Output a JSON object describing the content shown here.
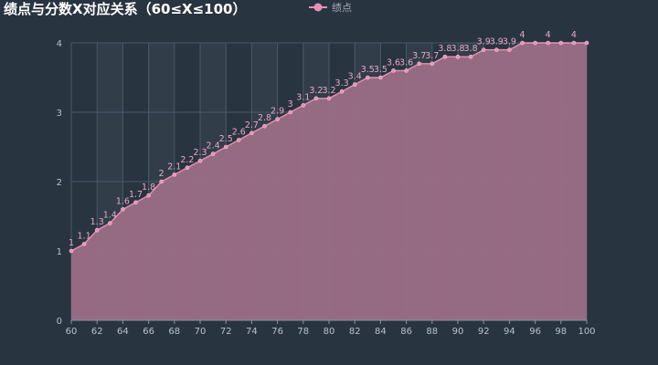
{
  "colors": {
    "background": "#293441",
    "series": "#e891b5",
    "area": "#9b6e86",
    "grid": "#4b5968",
    "band": "#323d4a"
  },
  "chart_data": {
    "type": "area",
    "title": "绩点与分数X对应关系（60≤X≤100）",
    "xlabel": "",
    "ylabel": "",
    "xlim": [
      60,
      100
    ],
    "ylim": [
      0,
      4
    ],
    "x_ticks": [
      "60",
      "62",
      "64",
      "66",
      "68",
      "70",
      "72",
      "74",
      "76",
      "78",
      "80",
      "82",
      "84",
      "86",
      "88",
      "90",
      "92",
      "94",
      "96",
      "98",
      "100"
    ],
    "y_ticks": [
      "0",
      "1",
      "2",
      "3",
      "4"
    ],
    "grid": true,
    "legend_position": "top-center",
    "series": [
      {
        "name": "绩点",
        "x": [
          60,
          61,
          62,
          63,
          64,
          65,
          66,
          67,
          68,
          69,
          70,
          71,
          72,
          73,
          74,
          75,
          76,
          77,
          78,
          79,
          80,
          81,
          82,
          83,
          84,
          85,
          86,
          87,
          88,
          89,
          90,
          91,
          92,
          93,
          94,
          95,
          96,
          97,
          98,
          99,
          100
        ],
        "values": [
          1,
          1.1,
          1.3,
          1.4,
          1.6,
          1.7,
          1.8,
          2,
          2.1,
          2.2,
          2.3,
          2.4,
          2.5,
          2.6,
          2.7,
          2.8,
          2.9,
          3,
          3.1,
          3.2,
          3.2,
          3.3,
          3.4,
          3.5,
          3.5,
          3.6,
          3.6,
          3.7,
          3.7,
          3.8,
          3.8,
          3.8,
          3.9,
          3.9,
          3.9,
          4,
          4,
          4,
          4,
          4,
          4
        ],
        "labels": [
          "1",
          "1.1",
          "1.3",
          "1.4",
          "1.6",
          "1.7",
          "1.8",
          "2",
          "2.1",
          "2.2",
          "2.3",
          "2.4",
          "2.5",
          "2.6",
          "2.7",
          "2.8",
          "2.9",
          "3",
          "3.1",
          "3.2",
          "3.2",
          "3.3",
          "3.4",
          "3.5",
          "3.5",
          "3.6",
          "3.6",
          "3.7",
          "3.7",
          "3.8",
          "3.8",
          "3.8",
          "3.9",
          "3.9",
          "3.9",
          "4",
          "4",
          "4",
          "4",
          "4",
          "4"
        ],
        "label_shown": [
          1,
          1,
          1,
          1,
          1,
          1,
          1,
          1,
          1,
          1,
          1,
          1,
          1,
          1,
          1,
          1,
          1,
          1,
          1,
          1,
          1,
          1,
          1,
          1,
          1,
          1,
          1,
          1,
          1,
          1,
          1,
          1,
          1,
          1,
          1,
          1,
          0,
          1,
          0,
          1,
          0
        ]
      }
    ]
  }
}
